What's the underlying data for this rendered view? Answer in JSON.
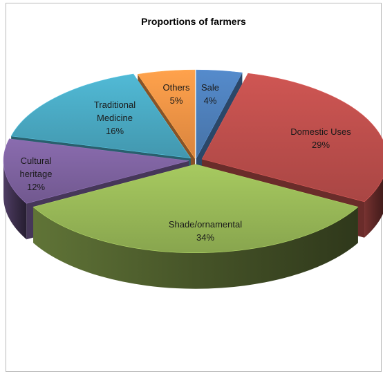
{
  "chart_data": {
    "type": "pie",
    "title": "Proportions of farmers",
    "style": "3d-exploded",
    "slices": [
      {
        "label": "Sale",
        "label_lines": [
          "Sale",
          "4%"
        ],
        "value": 4,
        "color": "#4f81bd"
      },
      {
        "label": "Domestic Uses",
        "label_lines": [
          "Domestic Uses",
          "29%"
        ],
        "value": 29,
        "color": "#c0504d"
      },
      {
        "label": "Shade/ornamental",
        "label_lines": [
          "Shade/ornamental",
          "34%"
        ],
        "value": 34,
        "color": "#9bbb59"
      },
      {
        "label": "Cultural heritage",
        "label_lines": [
          "Cultural",
          "heritage",
          "12%"
        ],
        "value": 12,
        "color": "#8064a2"
      },
      {
        "label": "Traditional Medicine",
        "label_lines": [
          "Traditional",
          "Medicine",
          "16%"
        ],
        "value": 16,
        "color": "#4bacc6"
      },
      {
        "label": "Others",
        "label_lines": [
          "Others",
          "5%"
        ],
        "value": 5,
        "color": "#f79646"
      }
    ]
  }
}
